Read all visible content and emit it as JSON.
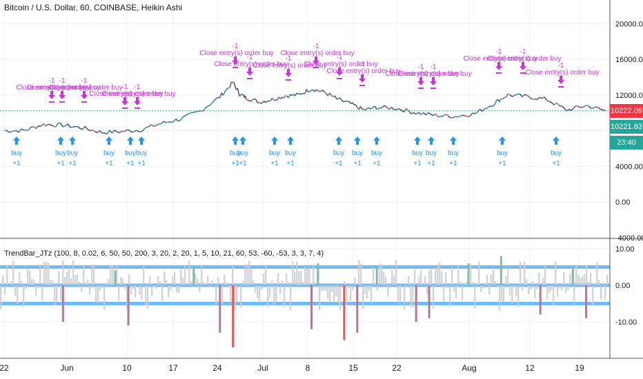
{
  "header": {
    "title": "Bitcoin / U.S. Dollar, 60, COINBASE, Heikin Ashi",
    "indicator_title": "TrendBar_JTz (100, 8, 0.02, 6, 50, 50, 200, 3, 20, 2, 20, 1, 5, 10, 21, 60, 53, -60, -53, 3, 3, 7, 4)"
  },
  "price_badges": [
    {
      "label": "10222.09",
      "color": "#f23645"
    },
    {
      "label": "10221.83",
      "color": "#26a69a"
    },
    {
      "label": "23:40",
      "color": "#26a69a"
    }
  ],
  "colors": {
    "up": "#26a69a",
    "down": "#ef5350",
    "buy": "#2196f3",
    "close": "#cc33dd",
    "band": "#42a5f5",
    "grid": "#eef0f3"
  },
  "chart_data": [
    {
      "type": "line",
      "title": "Bitcoin / U.S. Dollar, 60, COINBASE, Heikin Ashi",
      "y_ticks": [
        "20000.00",
        "16000.00",
        "12000.00",
        "8000.00",
        "4000.00",
        "0.00",
        "-4000.00"
      ],
      "y_tick_values": [
        20000,
        16000,
        12000,
        8000,
        4000,
        0,
        -4000
      ],
      "ylim": [
        -4000,
        22000
      ],
      "x_ticks": [
        "22",
        "Jun",
        "10",
        "17",
        "24",
        "Jul",
        "8",
        "15",
        "22",
        "Aug",
        "12",
        "19"
      ],
      "x": [
        "May 22",
        "May 25",
        "May 28",
        "May 31",
        "Jun 3",
        "Jun 6",
        "Jun 9",
        "Jun 12",
        "Jun 15",
        "Jun 18",
        "Jun 21",
        "Jun 24",
        "Jun 26",
        "Jun 27",
        "Jun 28",
        "Jun 30",
        "Jul 2",
        "Jul 4",
        "Jul 6",
        "Jul 8",
        "Jul 10",
        "Jul 12",
        "Jul 14",
        "Jul 16",
        "Jul 18",
        "Jul 21",
        "Jul 24",
        "Jul 27",
        "Jul 30",
        "Aug 2",
        "Aug 5",
        "Aug 7",
        "Aug 10",
        "Aug 13",
        "Aug 16",
        "Aug 19",
        "Aug 22"
      ],
      "series": [
        {
          "values": [
            8000,
            8000,
            8700,
            8600,
            8300,
            7800,
            7900,
            8100,
            8800,
            9300,
            10200,
            11800,
            13400,
            12100,
            11700,
            11200,
            11500,
            11900,
            12000,
            12700,
            12300,
            11500,
            11000,
            10300,
            10600,
            10500,
            10000,
            9700,
            9600,
            9900,
            11100,
            12000,
            11800,
            11500,
            10300,
            10800,
            10222
          ]
        }
      ],
      "current_price": 10222.09,
      "annotations": {
        "buy_text": "buy",
        "buy_qty": "+1",
        "close_text": "Close entry(s) order buy",
        "close_qty": "-1"
      }
    },
    {
      "type": "bar",
      "title": "TrendBar_JTz",
      "y_ticks": [
        "10.00",
        "0.00",
        "-10.00"
      ],
      "y_tick_values": [
        10,
        0,
        -10
      ],
      "ylim": [
        -17,
        12
      ],
      "band_levels": [
        5,
        0,
        -5
      ],
      "spikes_up": [
        {
          "x": "Jun 8",
          "v": 4
        },
        {
          "x": "Jun 20",
          "v": 5
        },
        {
          "x": "Jul 9",
          "v": 6
        },
        {
          "x": "Jul 18",
          "v": 5
        },
        {
          "x": "Aug 1",
          "v": 6
        },
        {
          "x": "Aug 6",
          "v": 8
        },
        {
          "x": "Aug 17",
          "v": 5
        }
      ],
      "spikes_down": [
        {
          "x": "May 31",
          "v": -10
        },
        {
          "x": "Jun 10",
          "v": -11
        },
        {
          "x": "Jun 24",
          "v": -13
        },
        {
          "x": "Jun 26",
          "v": -17
        },
        {
          "x": "Jul 8",
          "v": -12
        },
        {
          "x": "Jul 13",
          "v": -15
        },
        {
          "x": "Jul 15",
          "v": -13
        },
        {
          "x": "Jul 24",
          "v": -10
        },
        {
          "x": "Jul 26",
          "v": -9
        },
        {
          "x": "Aug 12",
          "v": -8
        },
        {
          "x": "Aug 19",
          "v": -9
        }
      ]
    }
  ]
}
